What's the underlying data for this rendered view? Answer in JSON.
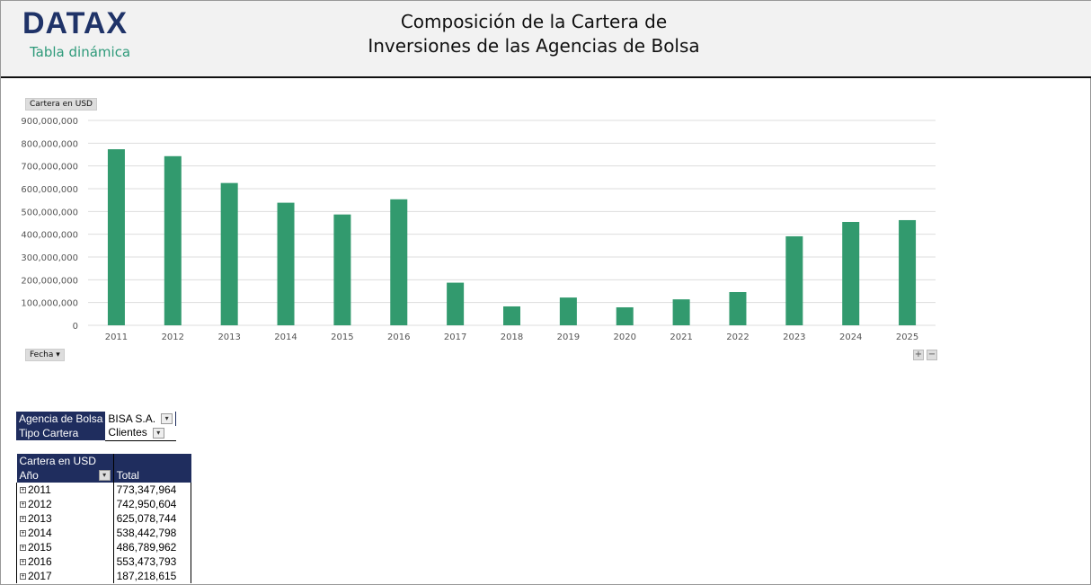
{
  "header": {
    "logo": "DATAX",
    "subtitle": "Tabla dinámica",
    "title_line1": "Composición de la Cartera de",
    "title_line2": "Inversiones de las Agencias de Bolsa"
  },
  "chart_controls": {
    "value_field": "Cartera en USD",
    "axis_field": "Fecha",
    "axis_field_icon": "dropdown-arrow-icon",
    "expand": "+",
    "collapse": "−"
  },
  "chart_data": {
    "type": "bar",
    "categories": [
      "2011",
      "2012",
      "2013",
      "2014",
      "2015",
      "2016",
      "2017",
      "2018",
      "2019",
      "2020",
      "2021",
      "2022",
      "2023",
      "2024",
      "2025"
    ],
    "values": [
      773347964,
      742950604,
      625078744,
      538442798,
      486789962,
      553473793,
      187218615,
      83000000,
      122000000,
      79000000,
      114000000,
      146000000,
      391000000,
      454000000,
      462000000
    ],
    "ylim": [
      0,
      900000000
    ],
    "yticks": [
      "0",
      "100,000,000",
      "200,000,000",
      "300,000,000",
      "400,000,000",
      "500,000,000",
      "600,000,000",
      "700,000,000",
      "800,000,000",
      "900,000,000"
    ],
    "grid": true,
    "color": "#329a6e"
  },
  "filters": [
    {
      "label": "Agencia de Bolsa",
      "value": "BISA S.A."
    },
    {
      "label": "Tipo Cartera",
      "value": "Clientes"
    }
  ],
  "pivot": {
    "header_value": "Cartera en USD",
    "row_label": "Año",
    "col_label": "Total",
    "rows": [
      {
        "year": "2011",
        "total": "773,347,964"
      },
      {
        "year": "2012",
        "total": "742,950,604"
      },
      {
        "year": "2013",
        "total": "625,078,744"
      },
      {
        "year": "2014",
        "total": "538,442,798"
      },
      {
        "year": "2015",
        "total": "486,789,962"
      },
      {
        "year": "2016",
        "total": "553,473,793"
      },
      {
        "year": "2017",
        "total": "187,218,615"
      }
    ]
  }
}
